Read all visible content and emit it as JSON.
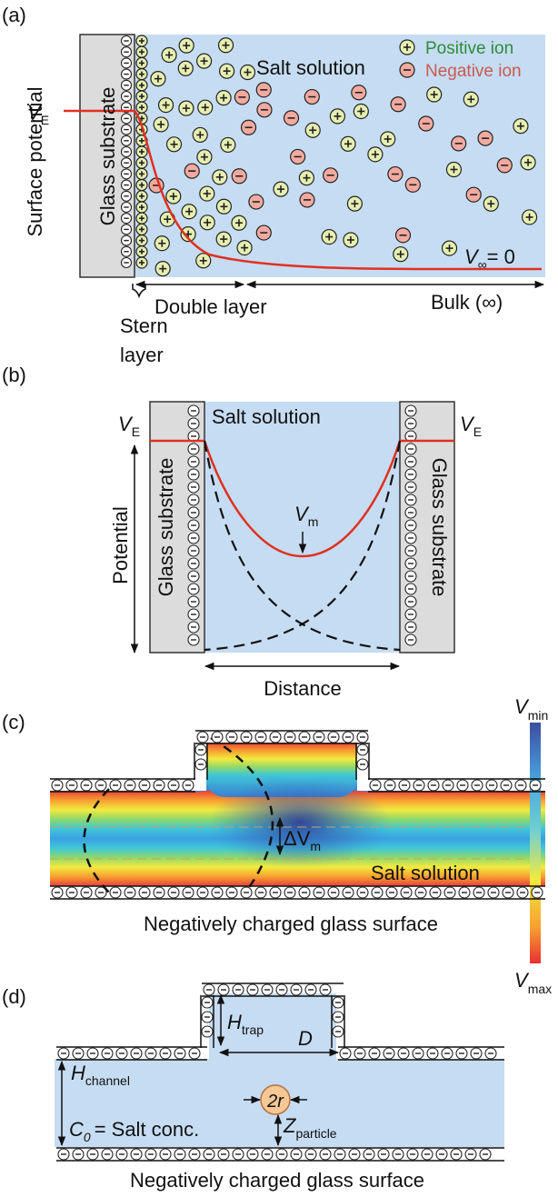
{
  "panels": {
    "a": {
      "label": "(a)",
      "y_axis_label": "Surface potential",
      "substrate": "Glass substrate",
      "solution": "Salt solution",
      "legend": [
        "Positive ion",
        "Negative ion"
      ],
      "surface_potential": {
        "symbol": "V",
        "subscript": "E"
      },
      "bulk_potential": {
        "symbol": "V",
        "subscript": "∞",
        "rest": "= 0"
      },
      "double_layer": "Double layer",
      "bulk": "Bulk (∞)",
      "stern_layer": [
        "Stern",
        "layer"
      ]
    },
    "b": {
      "label": "(b)",
      "solution": "Salt solution",
      "substrate_left": "Glass substrate",
      "substrate_right": "Glass substrate",
      "y_axis_label": "Potential",
      "x_axis_label": "Distance",
      "left_potential": {
        "symbol": "V",
        "subscript": "E"
      },
      "right_potential": {
        "symbol": "V",
        "subscript": "E"
      },
      "min_potential": {
        "symbol": "V",
        "subscript": "m"
      }
    },
    "c": {
      "label": "(c)",
      "delta": {
        "symbol": "ΔV",
        "subscript": "m"
      },
      "solution": "Salt solution",
      "surface": "Negatively charged glass surface",
      "colorbar_top": {
        "symbol": "V",
        "subscript": "min"
      },
      "colorbar_bottom": {
        "symbol": "V",
        "subscript": "max"
      }
    },
    "d": {
      "label": "(d)",
      "trap_height": {
        "symbol": "H",
        "subscript": "trap"
      },
      "trap_width": "D",
      "channel_height": {
        "symbol": "H",
        "subscript": "channel"
      },
      "particle": "2r",
      "particle_height": {
        "symbol": "Z",
        "subscript": "particle"
      },
      "concentration": {
        "symbol": "C",
        "subscript": "0",
        "rest": "= Salt conc."
      },
      "surface": "Negatively charged glass surface"
    }
  }
}
